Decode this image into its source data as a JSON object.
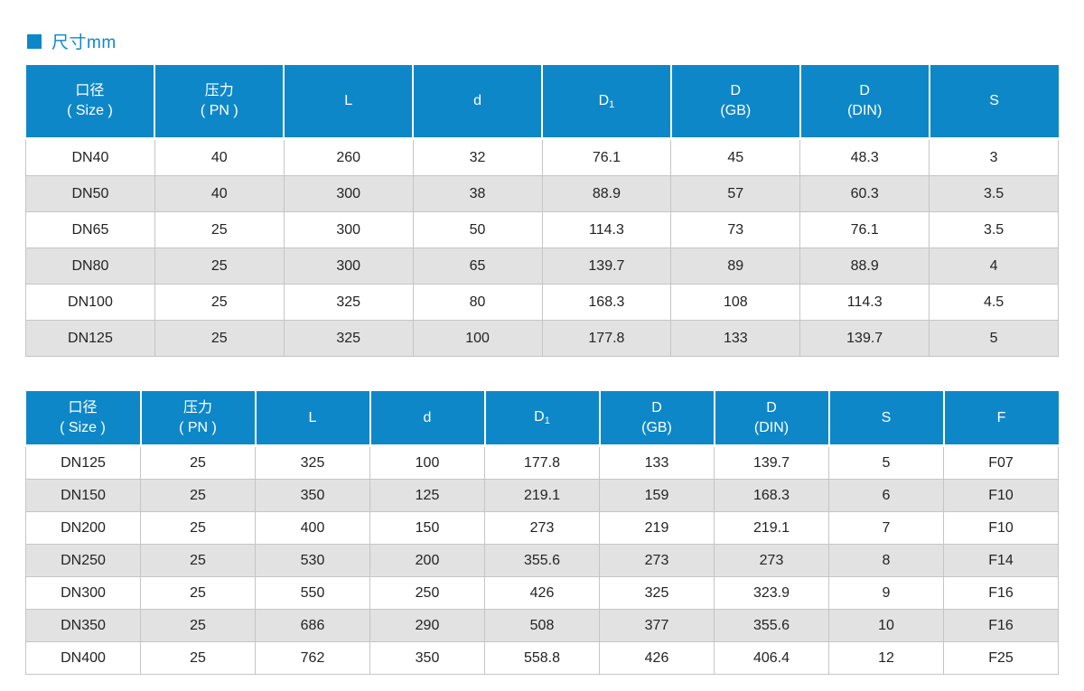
{
  "page": {
    "title": "尺寸mm"
  },
  "colors": {
    "accent_blue": "#0e87c9",
    "row_alt_gray": "#e2e2e2",
    "grid_line": "#c5c5c5"
  },
  "tables": [
    {
      "name": "size-table-1",
      "columns": [
        {
          "label": "口径",
          "sublabel": "( Size )"
        },
        {
          "label": "压力",
          "sublabel": "( PN )"
        },
        {
          "label": "L"
        },
        {
          "label": "d"
        },
        {
          "label": "D",
          "subscript": "1"
        },
        {
          "label": "D",
          "sublabel": "(GB)"
        },
        {
          "label": "D",
          "sublabel": "(DIN)"
        },
        {
          "label": "S"
        }
      ],
      "rows": [
        [
          "DN40",
          "40",
          "260",
          "32",
          "76.1",
          "45",
          "48.3",
          "3"
        ],
        [
          "DN50",
          "40",
          "300",
          "38",
          "88.9",
          "57",
          "60.3",
          "3.5"
        ],
        [
          "DN65",
          "25",
          "300",
          "50",
          "114.3",
          "73",
          "76.1",
          "3.5"
        ],
        [
          "DN80",
          "25",
          "300",
          "65",
          "139.7",
          "89",
          "88.9",
          "4"
        ],
        [
          "DN100",
          "25",
          "325",
          "80",
          "168.3",
          "108",
          "114.3",
          "4.5"
        ],
        [
          "DN125",
          "25",
          "325",
          "100",
          "177.8",
          "133",
          "139.7",
          "5"
        ]
      ]
    },
    {
      "name": "size-table-2",
      "columns": [
        {
          "label": "口径",
          "sublabel": "( Size )"
        },
        {
          "label": "压力",
          "sublabel": "( PN )"
        },
        {
          "label": "L"
        },
        {
          "label": "d"
        },
        {
          "label": "D",
          "subscript": "1"
        },
        {
          "label": "D",
          "sublabel": "(GB)"
        },
        {
          "label": "D",
          "sublabel": "(DIN)"
        },
        {
          "label": "S"
        },
        {
          "label": "F"
        }
      ],
      "rows": [
        [
          "DN125",
          "25",
          "325",
          "100",
          "177.8",
          "133",
          "139.7",
          "5",
          "F07"
        ],
        [
          "DN150",
          "25",
          "350",
          "125",
          "219.1",
          "159",
          "168.3",
          "6",
          "F10"
        ],
        [
          "DN200",
          "25",
          "400",
          "150",
          "273",
          "219",
          "219.1",
          "7",
          "F10"
        ],
        [
          "DN250",
          "25",
          "530",
          "200",
          "355.6",
          "273",
          "273",
          "8",
          "F14"
        ],
        [
          "DN300",
          "25",
          "550",
          "250",
          "426",
          "325",
          "323.9",
          "9",
          "F16"
        ],
        [
          "DN350",
          "25",
          "686",
          "290",
          "508",
          "377",
          "355.6",
          "10",
          "F16"
        ],
        [
          "DN400",
          "25",
          "762",
          "350",
          "558.8",
          "426",
          "406.4",
          "12",
          "F25"
        ]
      ]
    }
  ]
}
